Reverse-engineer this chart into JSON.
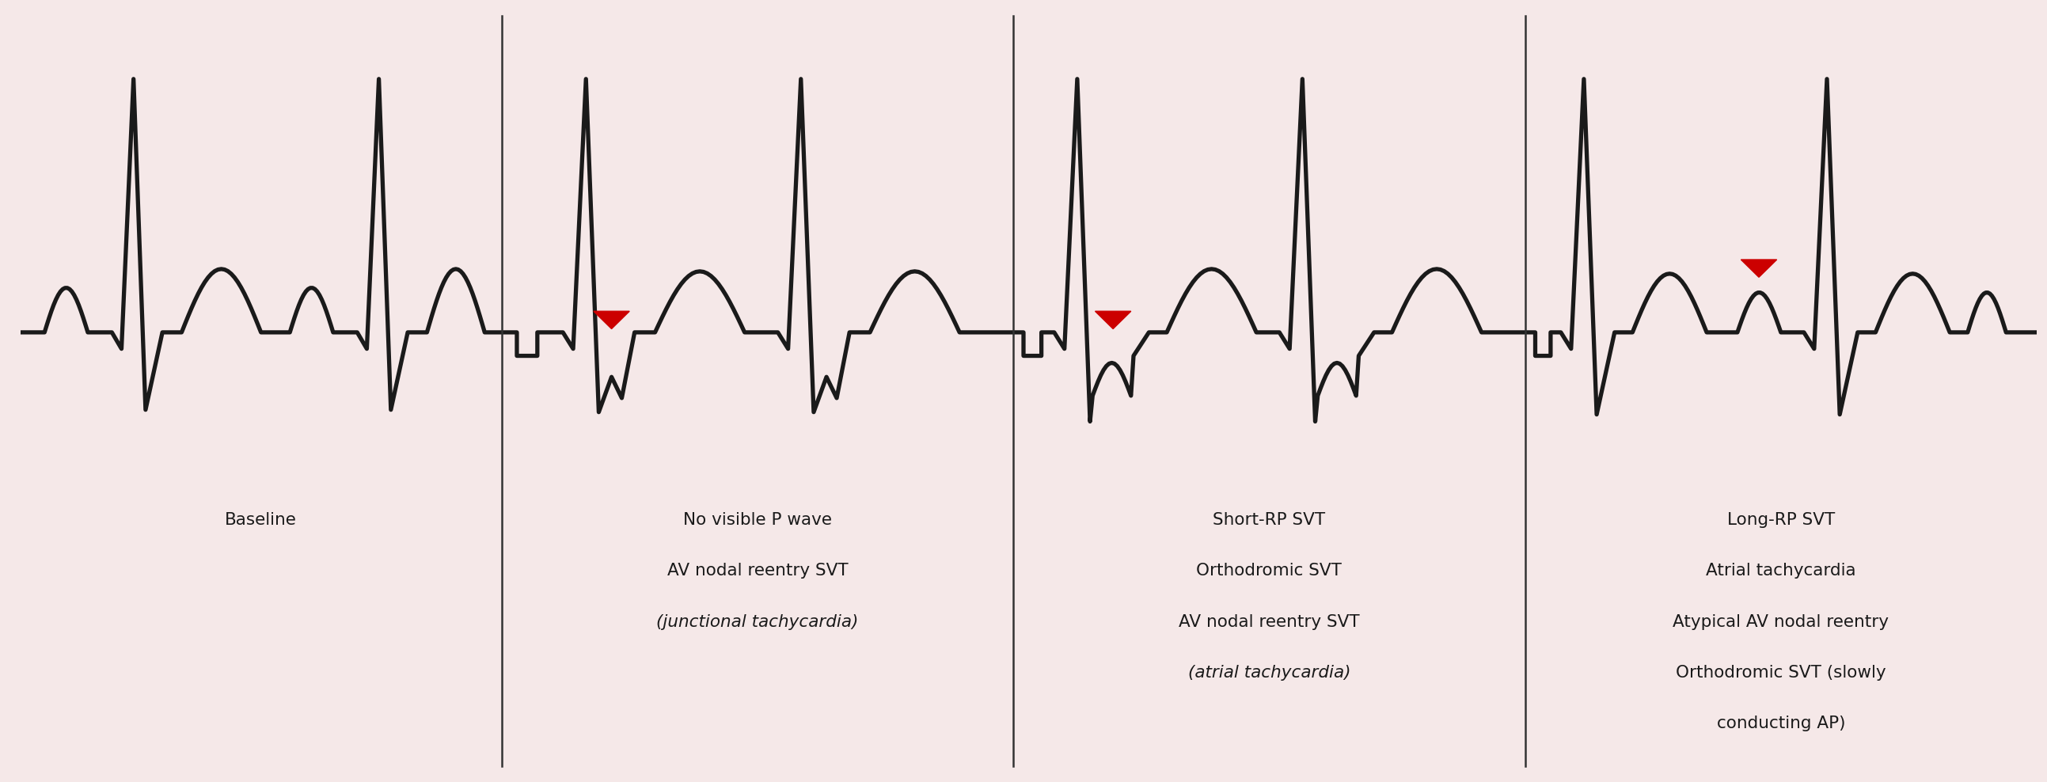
{
  "bg_color": "#f5e8e8",
  "ecg_color": "#1a1a1a",
  "divider_color": "#333333",
  "arrowhead_color": "#cc0000",
  "fig_width": 25.86,
  "fig_height": 9.88,
  "panels": [
    {
      "title_lines": [
        "Baseline"
      ],
      "has_arrowhead": false
    },
    {
      "title_lines": [
        "No visible P wave",
        "AV nodal reentry SVT",
        "(junctional tachycardia)"
      ],
      "has_arrowhead": true
    },
    {
      "title_lines": [
        "Short-RP SVT",
        "Orthodromic SVT",
        "AV nodal reentry SVT",
        "(atrial tachycardia)"
      ],
      "has_arrowhead": true
    },
    {
      "title_lines": [
        "Long-RP SVT",
        "Atrial tachycardia",
        "Atypical AV nodal reentry",
        "Orthodromic SVT (slowly",
        "conducting AP)"
      ],
      "has_arrowhead": true
    }
  ]
}
